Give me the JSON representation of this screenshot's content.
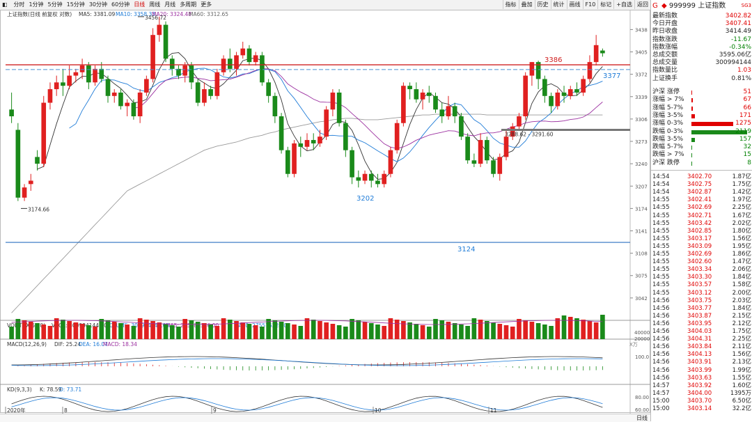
{
  "toolbar": {
    "periods": [
      "分时",
      "1分钟",
      "5分钟",
      "15分钟",
      "30分钟",
      "60分钟",
      "日线",
      "周线",
      "月线",
      "多周期",
      "更多"
    ],
    "active": "日线",
    "tools": [
      "指标",
      "叠加",
      "历史",
      "统计",
      "画线",
      "F10",
      "标记",
      "+自选",
      "返回"
    ]
  },
  "main_info": {
    "name": "上证指数(日线 前复权 对数)",
    "ma5": "MA5: 3381.09",
    "ma10": "MA10: 3358.33",
    "ma20": "MA20: 3324.48",
    "ma60": "MA60: 3312.65"
  },
  "price_axis": [
    "3438",
    "3405",
    "3372",
    "3339",
    "3306",
    "3273",
    "3240",
    "3207",
    "3174",
    "3141",
    "3108",
    "3075",
    "3042"
  ],
  "annotations": {
    "high": "3456.72",
    "low": "3174.66",
    "line_3386": "3386",
    "line_3377": "3377",
    "line_3202": "3202",
    "line_3124": "3124",
    "range": "3288.62 - 3291.60"
  },
  "vol_info": {
    "name": "VOL-TDX(5,10)",
    "vvol": "VVOL: 300994144.00",
    "volume": "VOLUME: 300994144.00",
    "ma5": "MA5: 285386336.00",
    "ma10": "MA10: 275576224.00"
  },
  "vol_axis": [
    "40000",
    "20000",
    "X万"
  ],
  "macd_info": {
    "name": "MACD(12,26,9)",
    "dif": "DIF: 25.24",
    "dea": "DEA: 16.07",
    "macd": "MACD: 18.34"
  },
  "macd_axis": [
    "100.0"
  ],
  "kd_info": {
    "name": "KD(9,3,3)",
    "k": "K: 78.59",
    "d": "D: 73.71"
  },
  "kd_axis": [
    "80.00",
    "60.00"
  ],
  "date_axis": [
    "2020年",
    "8",
    "9",
    "10",
    "11"
  ],
  "bottom_right": "日线",
  "side": {
    "code": "999999",
    "name": "上证指数",
    "tag": "SG3",
    "flag": "G",
    "quote": [
      {
        "l": "最新指数",
        "r": "3402.82",
        "c": "red"
      },
      {
        "l": "今日开盘",
        "r": "3407.41",
        "c": "red"
      },
      {
        "l": "昨日收盘",
        "r": "3414.49",
        "c": "blk"
      },
      {
        "l": "指数涨跌",
        "r": "-11.67",
        "c": "green"
      },
      {
        "l": "指数涨幅",
        "r": "-0.34%",
        "c": "green"
      },
      {
        "l": "总成交额",
        "r": "3595.06亿",
        "c": "blk"
      },
      {
        "l": "总成交量",
        "r": "300994144",
        "c": "blk"
      },
      {
        "l": "指数量比",
        "r": "1.03",
        "c": "red"
      },
      {
        "l": "上证换手",
        "r": "0.81%",
        "c": "blk"
      }
    ],
    "dist": [
      {
        "l": "沪深 涨停",
        "r": "51",
        "c": "red",
        "bw": 1
      },
      {
        "l": "涨幅 > 7%",
        "r": "67",
        "c": "red",
        "bw": 2
      },
      {
        "l": "涨幅 5-7%",
        "r": "66",
        "c": "red",
        "bw": 2
      },
      {
        "l": "涨幅 3-5%",
        "r": "171",
        "c": "red",
        "bw": 5
      },
      {
        "l": "涨幅 0-3%",
        "r": "1275",
        "c": "red",
        "bw": 60
      },
      {
        "l": "跌幅 0-3%",
        "r": "2119",
        "c": "green",
        "bw": 80
      },
      {
        "l": "跌幅 3-5%",
        "r": "157",
        "c": "green",
        "bw": 5
      },
      {
        "l": "跌幅 5-7%",
        "r": "32",
        "c": "green",
        "bw": 1
      },
      {
        "l": "跌幅 > 7%",
        "r": "15",
        "c": "green",
        "bw": 1
      },
      {
        "l": "沪深 跌停",
        "r": "8",
        "c": "green",
        "bw": 1
      }
    ],
    "ticks": [
      {
        "t": "14:54",
        "p": "3402.70",
        "v": "1.87亿"
      },
      {
        "t": "14:54",
        "p": "3402.75",
        "v": "1.75亿"
      },
      {
        "t": "14:54",
        "p": "3402.87",
        "v": "1.42亿"
      },
      {
        "t": "14:55",
        "p": "3402.41",
        "v": "1.97亿"
      },
      {
        "t": "14:55",
        "p": "3402.69",
        "v": "2.25亿"
      },
      {
        "t": "14:55",
        "p": "3402.71",
        "v": "1.67亿"
      },
      {
        "t": "14:55",
        "p": "3403.42",
        "v": "2.02亿"
      },
      {
        "t": "14:55",
        "p": "3402.85",
        "v": "1.80亿"
      },
      {
        "t": "14:55",
        "p": "3403.17",
        "v": "1.56亿"
      },
      {
        "t": "14:55",
        "p": "3403.09",
        "v": "1.95亿"
      },
      {
        "t": "14:55",
        "p": "3402.69",
        "v": "1.86亿"
      },
      {
        "t": "14:55",
        "p": "3402.60",
        "v": "1.47亿"
      },
      {
        "t": "14:55",
        "p": "3403.34",
        "v": "2.06亿"
      },
      {
        "t": "14:55",
        "p": "3403.30",
        "v": "1.84亿"
      },
      {
        "t": "14:55",
        "p": "3403.57",
        "v": "1.58亿"
      },
      {
        "t": "14:55",
        "p": "3403.12",
        "v": "2.00亿"
      },
      {
        "t": "14:56",
        "p": "3403.75",
        "v": "2.03亿"
      },
      {
        "t": "14:56",
        "p": "3403.77",
        "v": "1.84亿"
      },
      {
        "t": "14:56",
        "p": "3403.87",
        "v": "2.15亿"
      },
      {
        "t": "14:56",
        "p": "3403.95",
        "v": "2.12亿"
      },
      {
        "t": "14:56",
        "p": "3404.03",
        "v": "1.75亿"
      },
      {
        "t": "14:56",
        "p": "3404.31",
        "v": "2.25亿"
      },
      {
        "t": "14:56",
        "p": "3403.84",
        "v": "2.11亿"
      },
      {
        "t": "14:56",
        "p": "3404.13",
        "v": "1.56亿"
      },
      {
        "t": "14:56",
        "p": "3403.91",
        "v": "2.13亿"
      },
      {
        "t": "14:56",
        "p": "3403.99",
        "v": "1.99亿"
      },
      {
        "t": "14:56",
        "p": "3403.63",
        "v": "1.55亿"
      },
      {
        "t": "14:57",
        "p": "3403.92",
        "v": "1.60亿"
      },
      {
        "t": "14:57",
        "p": "3404.00",
        "v": "1395万"
      },
      {
        "t": "15:00",
        "p": "3403.70",
        "v": "6.50亿"
      },
      {
        "t": "15:00",
        "p": "3403.14",
        "v": "32.2亿"
      }
    ]
  },
  "chart_data": {
    "type": "candlestick",
    "title": "上证指数(日线 前复权 对数)",
    "ylim": [
      3010,
      3460
    ],
    "candles": [
      [
        3320,
        3310,
        3345,
        3300
      ],
      [
        3290,
        3190,
        3300,
        3185
      ],
      [
        3190,
        3205,
        3210,
        3185
      ],
      [
        3210,
        3215,
        3225,
        3200
      ],
      [
        3250,
        3240,
        3260,
        3230
      ],
      [
        3240,
        3330,
        3340,
        3235
      ],
      [
        3330,
        3350,
        3360,
        3320
      ],
      [
        3350,
        3360,
        3370,
        3340
      ],
      [
        3360,
        3355,
        3380,
        3340
      ],
      [
        3355,
        3370,
        3385,
        3350
      ],
      [
        3370,
        3375,
        3380,
        3360
      ],
      [
        3375,
        3385,
        3395,
        3365
      ],
      [
        3385,
        3360,
        3390,
        3350
      ],
      [
        3360,
        3380,
        3385,
        3355
      ],
      [
        3380,
        3365,
        3390,
        3360
      ],
      [
        3365,
        3340,
        3370,
        3330
      ],
      [
        3340,
        3345,
        3350,
        3330
      ],
      [
        3345,
        3325,
        3350,
        3320
      ],
      [
        3325,
        3330,
        3335,
        3310
      ],
      [
        3330,
        3310,
        3335,
        3305
      ],
      [
        3310,
        3345,
        3350,
        3300
      ],
      [
        3345,
        3365,
        3370,
        3340
      ],
      [
        3365,
        3430,
        3440,
        3360
      ],
      [
        3430,
        3445,
        3457,
        3420
      ],
      [
        3445,
        3395,
        3450,
        3390
      ],
      [
        3395,
        3380,
        3400,
        3370
      ],
      [
        3380,
        3370,
        3385,
        3365
      ],
      [
        3370,
        3385,
        3390,
        3360
      ],
      [
        3385,
        3360,
        3390,
        3350
      ],
      [
        3360,
        3330,
        3365,
        3325
      ],
      [
        3330,
        3350,
        3360,
        3325
      ],
      [
        3350,
        3340,
        3355,
        3335
      ],
      [
        3340,
        3375,
        3380,
        3335
      ],
      [
        3375,
        3395,
        3400,
        3370
      ],
      [
        3395,
        3380,
        3410,
        3375
      ],
      [
        3380,
        3400,
        3405,
        3370
      ],
      [
        3400,
        3410,
        3420,
        3395
      ],
      [
        3410,
        3390,
        3415,
        3385
      ],
      [
        3390,
        3400,
        3405,
        3385
      ],
      [
        3400,
        3360,
        3405,
        3355
      ],
      [
        3360,
        3340,
        3365,
        3330
      ],
      [
        3340,
        3310,
        3345,
        3300
      ],
      [
        3310,
        3260,
        3315,
        3255
      ],
      [
        3260,
        3225,
        3265,
        3220
      ],
      [
        3225,
        3270,
        3275,
        3220
      ],
      [
        3270,
        3265,
        3280,
        3250
      ],
      [
        3265,
        3275,
        3285,
        3260
      ],
      [
        3275,
        3270,
        3285,
        3260
      ],
      [
        3270,
        3280,
        3290,
        3265
      ],
      [
        3280,
        3320,
        3325,
        3275
      ],
      [
        3320,
        3345,
        3350,
        3310
      ],
      [
        3345,
        3300,
        3350,
        3295
      ],
      [
        3300,
        3260,
        3305,
        3250
      ],
      [
        3260,
        3220,
        3265,
        3210
      ],
      [
        3220,
        3215,
        3230,
        3205
      ],
      [
        3215,
        3225,
        3230,
        3210
      ],
      [
        3225,
        3215,
        3230,
        3205
      ],
      [
        3215,
        3210,
        3225,
        3205
      ],
      [
        3210,
        3225,
        3230,
        3205
      ],
      [
        3225,
        3260,
        3265,
        3220
      ],
      [
        3260,
        3300,
        3305,
        3255
      ],
      [
        3300,
        3355,
        3360,
        3295
      ],
      [
        3355,
        3350,
        3360,
        3335
      ],
      [
        3350,
        3335,
        3360,
        3330
      ],
      [
        3335,
        3345,
        3350,
        3320
      ],
      [
        3345,
        3340,
        3355,
        3330
      ],
      [
        3340,
        3320,
        3345,
        3315
      ],
      [
        3320,
        3310,
        3330,
        3300
      ],
      [
        3310,
        3325,
        3340,
        3305
      ],
      [
        3325,
        3310,
        3330,
        3300
      ],
      [
        3310,
        3280,
        3315,
        3275
      ],
      [
        3280,
        3245,
        3285,
        3240
      ],
      [
        3245,
        3240,
        3255,
        3235
      ],
      [
        3240,
        3275,
        3285,
        3235
      ],
      [
        3275,
        3245,
        3280,
        3240
      ],
      [
        3245,
        3225,
        3250,
        3220
      ],
      [
        3225,
        3250,
        3255,
        3215
      ],
      [
        3250,
        3280,
        3290,
        3245
      ],
      [
        3280,
        3295,
        3300,
        3275
      ],
      [
        3295,
        3310,
        3315,
        3290
      ],
      [
        3310,
        3370,
        3375,
        3305
      ],
      [
        3370,
        3390,
        3390,
        3355
      ],
      [
        3390,
        3365,
        3392,
        3350
      ],
      [
        3365,
        3340,
        3370,
        3330
      ],
      [
        3340,
        3325,
        3345,
        3315
      ],
      [
        3325,
        3345,
        3350,
        3320
      ],
      [
        3345,
        3340,
        3355,
        3330
      ],
      [
        3340,
        3350,
        3355,
        3335
      ],
      [
        3350,
        3345,
        3360,
        3340
      ],
      [
        3345,
        3365,
        3370,
        3340
      ],
      [
        3365,
        3390,
        3400,
        3360
      ],
      [
        3390,
        3415,
        3430,
        3385
      ],
      [
        3407,
        3403,
        3410,
        3398
      ]
    ],
    "ma_long": [
      3020,
      3030,
      3040,
      3050,
      3060,
      3070,
      3080,
      3090,
      3100,
      3110,
      3120,
      3130,
      3140,
      3150,
      3160,
      3170,
      3180,
      3190,
      3200,
      3205,
      3210,
      3215,
      3220,
      3225,
      3230,
      3235,
      3240,
      3245,
      3250,
      3255,
      3260,
      3263,
      3266,
      3268,
      3270,
      3272,
      3275,
      3278,
      3280,
      3282,
      3285,
      3287,
      3290,
      3292,
      3294,
      3296,
      3298,
      3300,
      3302,
      3303,
      3305,
      3306,
      3307,
      3307,
      3306,
      3305,
      3305,
      3305,
      3306,
      3307,
      3308,
      3309,
      3310,
      3311,
      3312,
      3312,
      3313,
      3313,
      3313,
      3313,
      3313,
      3313,
      3313,
      3313,
      3312,
      3312,
      3312,
      3312,
      3312,
      3312,
      3312,
      3312,
      3312,
      3312,
      3312,
      3312,
      3312,
      3312,
      3312,
      3312,
      3312,
      3312,
      3312
    ]
  }
}
